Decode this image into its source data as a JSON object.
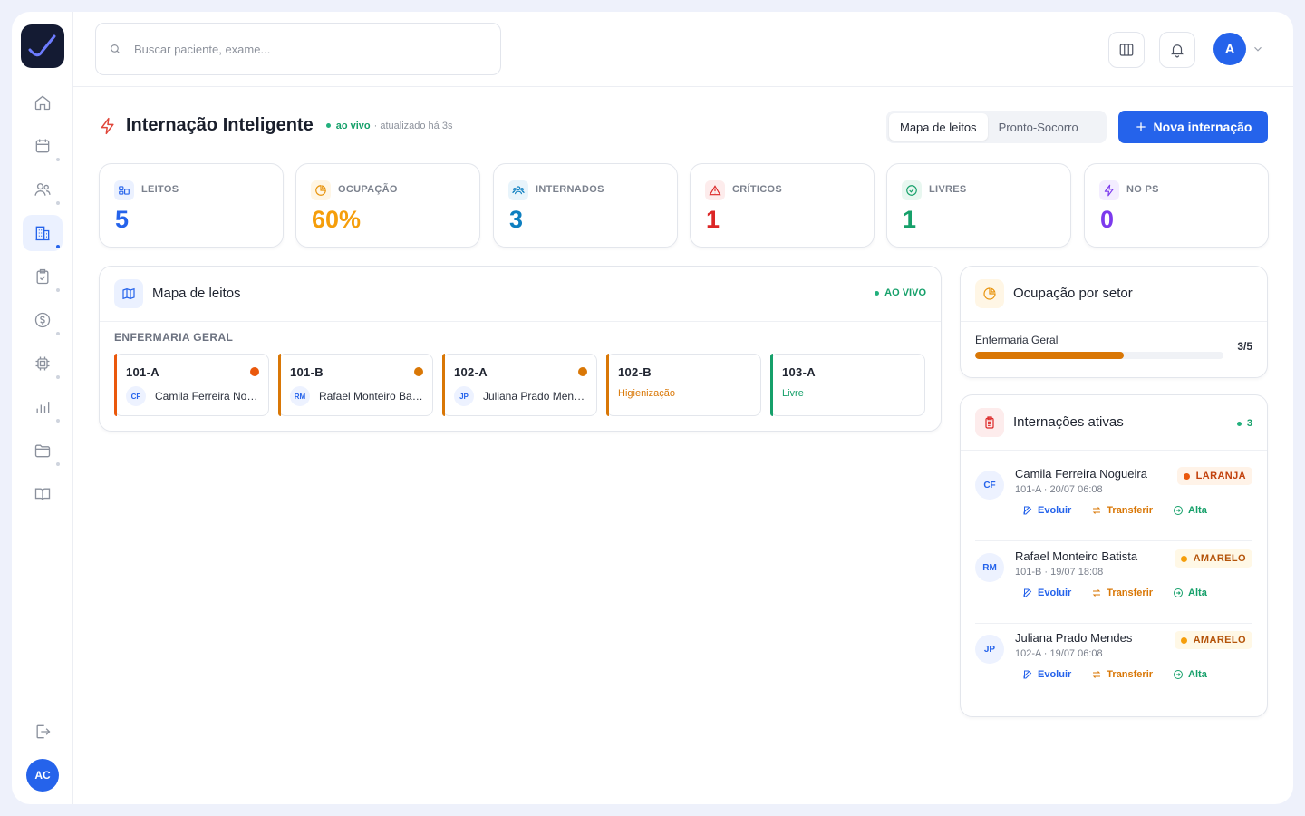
{
  "search": {
    "placeholder": "Buscar paciente, exame..."
  },
  "topbar": {
    "user_initial": "A"
  },
  "sidebar": {
    "user_initials": "AC",
    "active_item": "hospital"
  },
  "page": {
    "title": "Internação Inteligente",
    "live_label": "ao vivo",
    "updated": "· atualizado há 3s",
    "view_tabs": [
      "Mapa de leitos",
      "Pronto-Socorro"
    ],
    "active_tab": "Mapa de leitos",
    "new_button": "Nova internação"
  },
  "stats": [
    {
      "label": "LEITOS",
      "value": "5",
      "color": "#2563eb"
    },
    {
      "label": "OCUPAÇÃO",
      "value": "60%",
      "color": "#f59e0b"
    },
    {
      "label": "INTERNADOS",
      "value": "3",
      "color": "#0e7fc0"
    },
    {
      "label": "CRÍTICOS",
      "value": "1",
      "color": "#dc2626"
    },
    {
      "label": "LIVRES",
      "value": "1",
      "color": "#16a06a"
    },
    {
      "label": "NO PS",
      "value": "0",
      "color": "#7c3aed"
    }
  ],
  "bed_map": {
    "title": "Mapa de leitos",
    "live_label": "AO VIVO",
    "sector": "ENFERMARIA GERAL",
    "beds": [
      {
        "id": "101-A",
        "initials": "CF",
        "patient": "Camila Ferreira Nogueira",
        "accent": "#ea580c"
      },
      {
        "id": "101-B",
        "initials": "RM",
        "patient": "Rafael Monteiro Batista",
        "accent": "#d97706"
      },
      {
        "id": "102-A",
        "initials": "JP",
        "patient": "Juliana Prado Mendes",
        "accent": "#d97706"
      },
      {
        "id": "102-B",
        "status": "Higienização",
        "accent": "#d97706"
      },
      {
        "id": "103-A",
        "status": "Livre",
        "accent": "#16a06a"
      }
    ]
  },
  "occupancy": {
    "title": "Ocupação por setor",
    "sectors": [
      {
        "name": "Enfermaria Geral",
        "value": "3/5",
        "fraction": 0.6
      }
    ]
  },
  "admissions": {
    "title": "Internações ativas",
    "count": "3",
    "actions": [
      "Evoluir",
      "Transferir",
      "Alta"
    ],
    "items": [
      {
        "initials": "CF",
        "name": "Camila Ferreira Nogueira",
        "meta": "101-A · 20/07 06:08",
        "priority": "LARANJA",
        "priority_color": "#ea580c",
        "priority_bg": "#fff3e8"
      },
      {
        "initials": "RM",
        "name": "Rafael Monteiro Batista",
        "meta": "101-B · 19/07 18:08",
        "priority": "AMARELO",
        "priority_color": "#d97706",
        "priority_bg": "#fff8e6"
      },
      {
        "initials": "JP",
        "name": "Juliana Prado Mendes",
        "meta": "102-A · 19/07 06:08",
        "priority": "AMARELO",
        "priority_color": "#d97706",
        "priority_bg": "#fff8e6"
      }
    ]
  }
}
